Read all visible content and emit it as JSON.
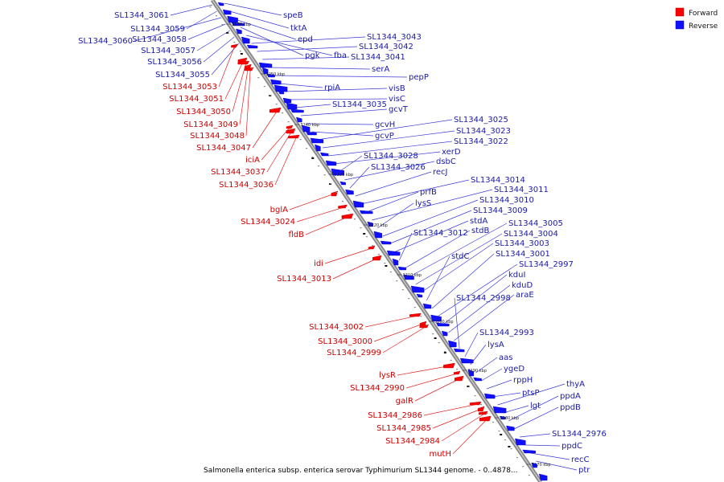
{
  "legend": {
    "forward_label": "Forward",
    "reverse_label": "Reverse",
    "forward_color": "#ff0000",
    "reverse_color": "#1010ff"
  },
  "caption": "Salmonella enterica subsp. enterica serovar Typhimurium SL1344 genome. - 0..4878...",
  "kbp_ticks": [
    "3260 kbp",
    "3250 kbp",
    "3240 kbp",
    "3230 kbp",
    "3220 kbp",
    "3210 kbp",
    "3200 kbp",
    "3190 kbp",
    "3180 kbp",
    "3170 kbp"
  ],
  "forward_genes": [
    "SL1344_3053",
    "SL1344_3051",
    "SL1344_3050",
    "SL1344_3049",
    "SL1344_3048",
    "SL1344_3047",
    "iciA",
    "SL1344_3037",
    "SL1344_3036",
    "bglA",
    "SL1344_3024",
    "fldB",
    "idi",
    "SL1344_3013",
    "SL1344_3002",
    "SL1344_3000",
    "SL1344_2999",
    "lysR",
    "SL1344_2990",
    "galR",
    "SL1344_2986",
    "SL1344_2985",
    "SL1344_2984",
    "mutH"
  ],
  "reverse_genes_left": [
    "SL1344_3061",
    "SL1344_3059",
    "SL1344_3060",
    "SL1344_3058",
    "SL1344_3057",
    "SL1344_3056",
    "SL1344_3055"
  ],
  "reverse_genes_right": [
    "speB",
    "tktA",
    "epd",
    "pgk",
    "fba",
    "SL1344_3043",
    "SL1344_3042",
    "SL1344_3041",
    "serA",
    "pepP",
    "rpiA",
    "visB",
    "visC",
    "SL1344_3035",
    "gcvT",
    "gcvH",
    "gcvP",
    "SL1344_3025",
    "SL1344_3023",
    "SL1344_3022",
    "xerD",
    "SL1344_3028",
    "dsbC",
    "SL1344_3026",
    "recJ",
    "SL1344_3014",
    "prfB",
    "SL1344_3011",
    "lysS",
    "SL1344_3010",
    "SL1344_3009",
    "stdA",
    "SL1344_3012",
    "stdB",
    "SL1344_3005",
    "SL1344_3004",
    "SL1344_3003",
    "stdC",
    "SL1344_3001",
    "SL1344_2997",
    "kduI",
    "kduD",
    "araE",
    "SL1344_2998",
    "SL1344_2993",
    "lysA",
    "aas",
    "ygeD",
    "rppH",
    "ptsP",
    "thyA",
    "lgt",
    "ppdA",
    "ppdB",
    "SL1344_2976",
    "ppdC",
    "recC",
    "ptr"
  ]
}
